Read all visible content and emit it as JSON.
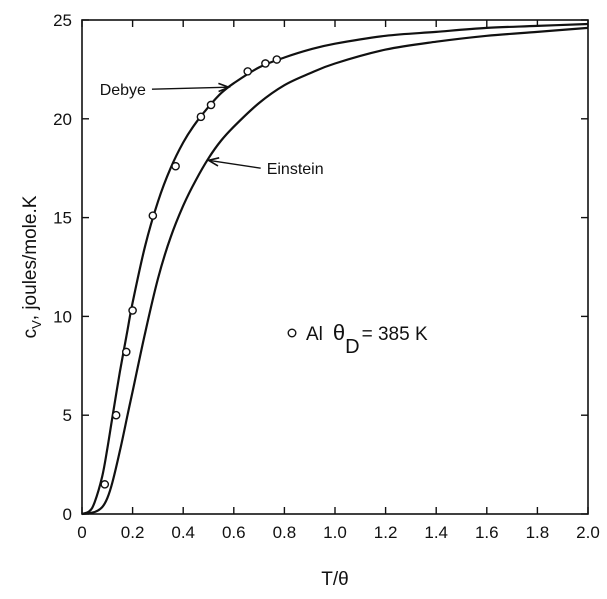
{
  "chart_data": {
    "type": "line",
    "xlabel": "T/θ",
    "ylabel": "c",
    "ylabel_sub": "V",
    "ylabel_rest": ", joules/mole.K",
    "xlim": [
      0,
      2.0
    ],
    "ylim": [
      0,
      25
    ],
    "x_ticks": [
      "0",
      "0.2",
      "0.4",
      "0.6",
      "0.8",
      "1.0",
      "1.2",
      "1.4",
      "1.6",
      "1.8",
      "2.0"
    ],
    "y_ticks": [
      "0",
      "5",
      "10",
      "15",
      "20",
      "25"
    ],
    "grid": false,
    "series": [
      {
        "name": "Debye",
        "x": [
          0,
          0.03,
          0.05,
          0.08,
          0.1,
          0.12,
          0.15,
          0.18,
          0.2,
          0.25,
          0.3,
          0.35,
          0.4,
          0.45,
          0.5,
          0.55,
          0.6,
          0.7,
          0.8,
          0.9,
          1.0,
          1.2,
          1.4,
          1.6,
          1.8,
          2.0
        ],
        "y": [
          0,
          0.15,
          0.6,
          1.9,
          3.3,
          4.9,
          7.2,
          9.3,
          10.7,
          13.6,
          15.8,
          17.5,
          18.8,
          19.8,
          20.6,
          21.3,
          21.8,
          22.6,
          23.1,
          23.5,
          23.8,
          24.2,
          24.4,
          24.6,
          24.7,
          24.8
        ]
      },
      {
        "name": "Einstein",
        "x": [
          0,
          0.05,
          0.08,
          0.1,
          0.12,
          0.15,
          0.18,
          0.2,
          0.25,
          0.3,
          0.35,
          0.4,
          0.45,
          0.5,
          0.55,
          0.6,
          0.7,
          0.8,
          0.9,
          1.0,
          1.2,
          1.4,
          1.6,
          1.8,
          2.0
        ],
        "y": [
          0,
          0.1,
          0.35,
          0.8,
          1.6,
          3.2,
          5.0,
          6.2,
          9.2,
          11.9,
          14.0,
          15.6,
          16.9,
          18.0,
          18.9,
          19.6,
          20.8,
          21.7,
          22.3,
          22.8,
          23.5,
          23.9,
          24.2,
          24.4,
          24.6
        ]
      },
      {
        "name": "Al",
        "style": "markers",
        "x": [
          0.09,
          0.135,
          0.175,
          0.2,
          0.28,
          0.37,
          0.47,
          0.51,
          0.655,
          0.725,
          0.77
        ],
        "y": [
          1.5,
          5.0,
          8.2,
          10.3,
          15.1,
          17.6,
          20.1,
          20.7,
          22.4,
          22.8,
          23.0
        ]
      }
    ],
    "annotations": [
      {
        "text": "Debye",
        "arrow_to": [
          0.58,
          21.6
        ],
        "text_at": [
          0.07,
          21.5
        ]
      },
      {
        "text": "Einstein",
        "arrow_to": [
          0.5,
          17.9
        ],
        "text_at": [
          0.73,
          17.5
        ]
      }
    ],
    "legend": {
      "placement": "center-right",
      "entries": [
        {
          "label": "Al",
          "theta": "θ",
          "theta_sub": "D",
          "value_text": "= 385 K"
        }
      ]
    }
  }
}
